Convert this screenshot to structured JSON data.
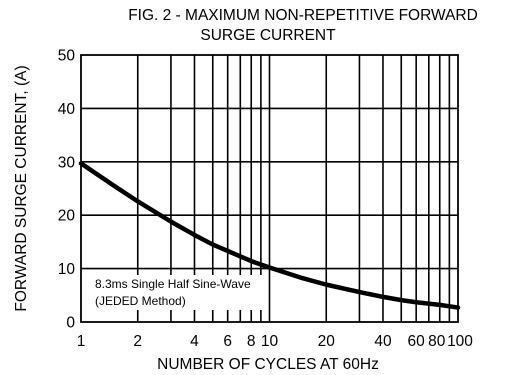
{
  "chart_data": {
    "type": "line",
    "title": [
      "FIG. 2 - MAXIMUM NON-REPETITIVE FORWARD",
      "SURGE CURRENT"
    ],
    "xlabel": "NUMBER OF CYCLES AT 60Hz",
    "ylabel": "FORWARD SURGE CURRENT, (A)",
    "x_scale": "log",
    "xlim": [
      1,
      100
    ],
    "ylim": [
      0,
      50
    ],
    "grid": true,
    "x_ticks": [
      {
        "value": 1,
        "label": "1"
      },
      {
        "value": 2,
        "label": "2"
      },
      {
        "value": 4,
        "label": "4"
      },
      {
        "value": 6,
        "label": "6"
      },
      {
        "value": 8,
        "label": "8"
      },
      {
        "value": 10,
        "label": "10"
      },
      {
        "value": 20,
        "label": "20"
      },
      {
        "value": 40,
        "label": "40"
      },
      {
        "value": 60,
        "label": "60"
      },
      {
        "value": 80,
        "label": "80"
      },
      {
        "value": 100,
        "label": "100"
      }
    ],
    "x_gridlines": [
      2,
      3,
      4,
      5,
      6,
      7,
      8,
      9,
      10,
      20,
      30,
      40,
      50,
      60,
      70,
      80,
      90
    ],
    "y_ticks": [
      {
        "value": 0,
        "label": "0"
      },
      {
        "value": 10,
        "label": "10"
      },
      {
        "value": 20,
        "label": "20"
      },
      {
        "value": 30,
        "label": "30"
      },
      {
        "value": 40,
        "label": "40"
      },
      {
        "value": 50,
        "label": "50"
      }
    ],
    "series": [
      {
        "x": [
          1,
          1.5,
          2,
          3,
          4,
          5,
          6,
          8,
          10,
          15,
          20,
          30,
          40,
          50,
          60,
          80,
          100
        ],
        "values": [
          29.7,
          25.5,
          22.6,
          18.8,
          16.3,
          14.5,
          13.3,
          11.4,
          10.2,
          8.2,
          7.0,
          5.6,
          4.7,
          4.1,
          3.7,
          3.2,
          2.7
        ]
      }
    ],
    "annotation": [
      "8.3ms Single Half Sine-Wave",
      "(JEDED Method)"
    ]
  }
}
